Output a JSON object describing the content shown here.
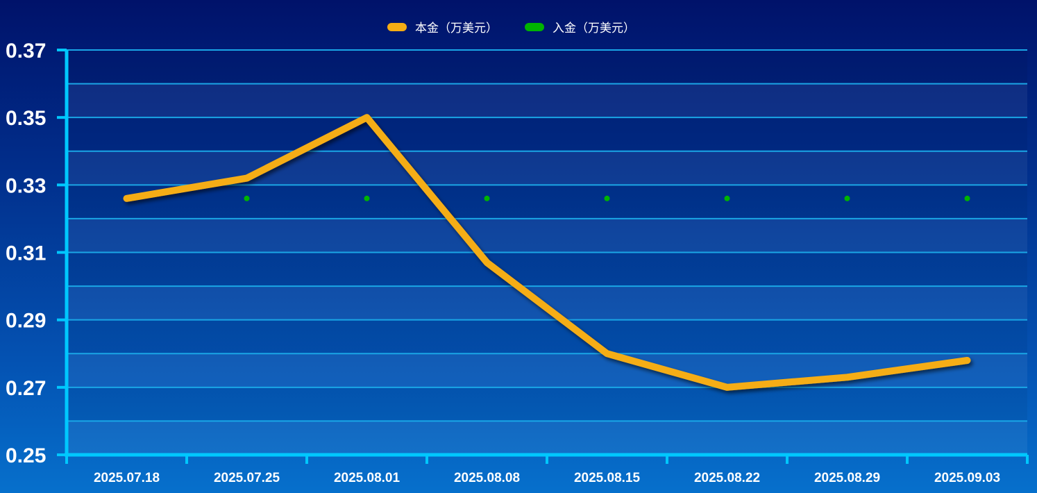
{
  "chart_data": {
    "type": "line",
    "categories": [
      "2025.07.18",
      "2025.07.25",
      "2025.08.01",
      "2025.08.08",
      "2025.08.15",
      "2025.08.22",
      "2025.08.29",
      "2025.09.03"
    ],
    "series": [
      {
        "name": "本金（万美元）",
        "color": "#f5ad14",
        "values": [
          0.326,
          0.332,
          0.35,
          0.307,
          0.28,
          0.27,
          0.273,
          0.278
        ]
      },
      {
        "name": "入金（万美元）",
        "color": "#00b400",
        "values": [
          0.326,
          0.326,
          0.326,
          0.326,
          0.326,
          0.326,
          0.326,
          0.326
        ]
      }
    ],
    "ylim": [
      0.25,
      0.37
    ],
    "yticks": [
      "0.25",
      "0.27",
      "0.29",
      "0.31",
      "0.33",
      "0.35",
      "0.37"
    ],
    "minor_step": 0.01,
    "grid": true,
    "legend": "top-center",
    "axis_color": "#00c8ff",
    "grid_color": "#1aa6e6"
  }
}
